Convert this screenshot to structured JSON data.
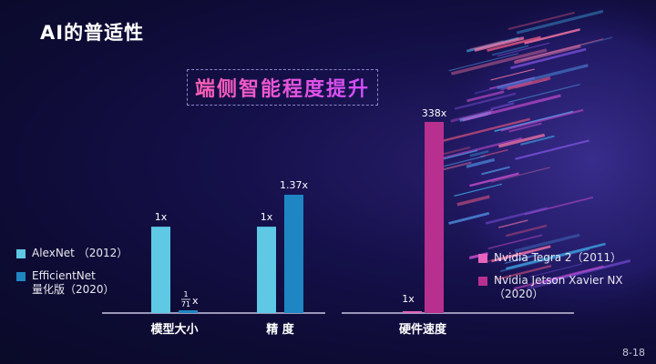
{
  "title": "AI的普适性",
  "subtitle": "端侧智能程度提升",
  "page_number": "8-18",
  "colors": {
    "alexnet": "#5ec8e5",
    "efficientnet": "#1f86c4",
    "tegra2": "#e763bd",
    "xavier": "#b8308f"
  },
  "chart_data": [
    {
      "type": "bar",
      "categories": [
        "模型大小",
        "精  度"
      ],
      "series": [
        {
          "name": "AlexNet  （2012）",
          "values": [
            1,
            1
          ]
        },
        {
          "name": "EfficientNet\n量化版（2020）",
          "values": [
            0.014,
            1.37
          ]
        }
      ],
      "data_labels": [
        [
          "1x",
          "1x"
        ],
        [
          "1/71 x",
          "1.37x"
        ]
      ],
      "label_parts": {
        "numerator": "1",
        "denominator": "71",
        "suffix": "x"
      },
      "legend": [
        {
          "name": "AlexNet  （2012）",
          "color": "#5ec8e5"
        },
        {
          "name": "EfficientNet\n量化版（2020）",
          "color": "#1f86c4"
        }
      ],
      "legend_position": "left"
    },
    {
      "type": "bar",
      "categories": [
        "硬件速度"
      ],
      "series": [
        {
          "name": "Nvidia  Tegra 2（2011）",
          "values": [
            1
          ]
        },
        {
          "name": "Nvidia Jetson Xavier NX\n（2020）",
          "values": [
            338
          ]
        }
      ],
      "data_labels": [
        [
          "1x"
        ],
        [
          "338x"
        ]
      ],
      "legend": [
        {
          "name": "Nvidia  Tegra 2（2011）",
          "color": "#e763bd"
        },
        {
          "name": "Nvidia Jetson Xavier NX\n（2020）",
          "color": "#b8308f"
        }
      ],
      "legend_position": "right"
    }
  ]
}
